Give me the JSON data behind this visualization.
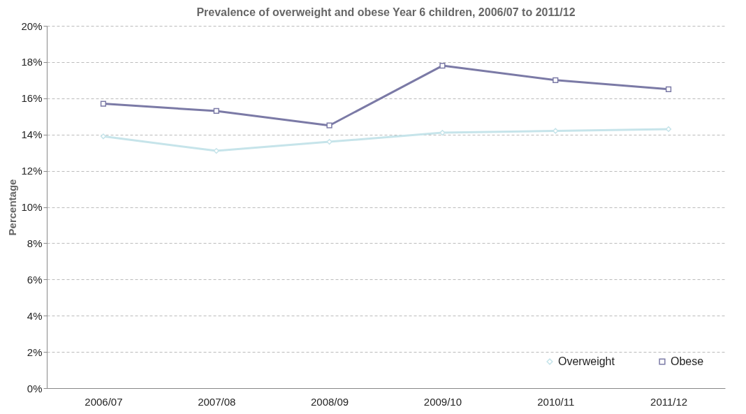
{
  "chart_data": {
    "type": "line",
    "title": "Prevalence of overweight and obese Year 6 children, 2006/07 to 2011/12",
    "ylabel": "Percentage",
    "categories": [
      "2006/07",
      "2007/08",
      "2008/09",
      "2009/10",
      "2010/11",
      "2011/12"
    ],
    "series": [
      {
        "name": "Overweight",
        "color": "#c6e4ea",
        "marker": "diamond",
        "values": [
          13.9,
          13.1,
          13.6,
          14.1,
          14.2,
          14.3
        ]
      },
      {
        "name": "Obese",
        "color": "#7b7aa6",
        "marker": "square",
        "values": [
          15.7,
          15.3,
          14.5,
          17.8,
          17.0,
          16.5
        ]
      }
    ],
    "ylim": [
      0,
      20
    ],
    "yticks": [
      {
        "value": 0,
        "label": "0%"
      },
      {
        "value": 2,
        "label": "2%"
      },
      {
        "value": 4,
        "label": "4%"
      },
      {
        "value": 6,
        "label": "6%"
      },
      {
        "value": 8,
        "label": "8%"
      },
      {
        "value": 10,
        "label": "10%"
      },
      {
        "value": 12,
        "label": "12%"
      },
      {
        "value": 14,
        "label": "14%"
      },
      {
        "value": 16,
        "label": "16%"
      },
      {
        "value": 18,
        "label": "18%"
      },
      {
        "value": 20,
        "label": "20%"
      }
    ],
    "grid": "y",
    "legend": "bottom right",
    "line_style": "solid"
  }
}
